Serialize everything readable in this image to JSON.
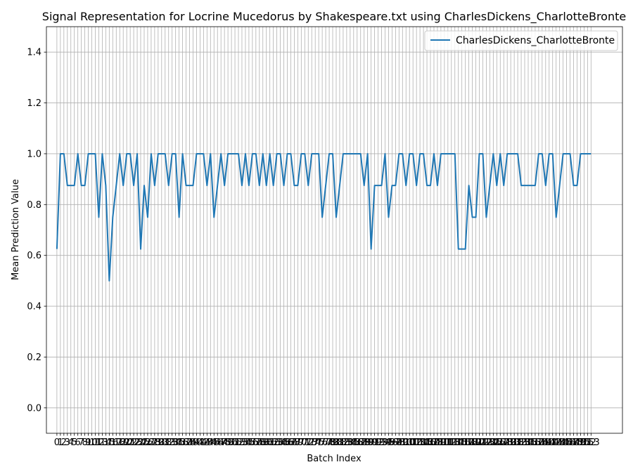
{
  "chart_data": {
    "type": "line",
    "title": "Signal Representation for Locrine Mucedorus by Shakespeare.txt using CharlesDickens_CharlotteBronte",
    "xlabel": "Batch Index",
    "ylabel": "Mean Prediction Value",
    "ylim": [
      -0.1,
      1.5
    ],
    "xlim": [
      -3,
      162
    ],
    "grid": true,
    "legend_position": "top-right",
    "y_ticks": [
      0.0,
      0.2,
      0.4,
      0.6,
      0.8,
      1.0,
      1.2,
      1.4
    ],
    "x_ticks": [
      0,
      1,
      2,
      3,
      4,
      5,
      6,
      7,
      8,
      9,
      10,
      11,
      12,
      13,
      14,
      15,
      16,
      17,
      18,
      19,
      20,
      21,
      22,
      23,
      24,
      25,
      26,
      27,
      28,
      29,
      30,
      31,
      32,
      33,
      34,
      35,
      36,
      37,
      38,
      39,
      40,
      41,
      42,
      43,
      44,
      45,
      46,
      47,
      48,
      49,
      50,
      51,
      52,
      53,
      54,
      55,
      56,
      57,
      58,
      59,
      60,
      61,
      62,
      63,
      64,
      65,
      66,
      67,
      68,
      69,
      70,
      71,
      72,
      73,
      74,
      75,
      76,
      77,
      78,
      79,
      80,
      81,
      82,
      83,
      84,
      85,
      86,
      87,
      88,
      89,
      90,
      91,
      92,
      93,
      94,
      95,
      96,
      97,
      98,
      99,
      100,
      101,
      102,
      103,
      104,
      105,
      106,
      107,
      108,
      109,
      110,
      111,
      112,
      113,
      114,
      115,
      116,
      117,
      118,
      119,
      120,
      121,
      122,
      123,
      124,
      125,
      126,
      127,
      128,
      129,
      130,
      131,
      132,
      133,
      134,
      135,
      136,
      137,
      138,
      139,
      140,
      141,
      142,
      143,
      144,
      145,
      146,
      147,
      148,
      149,
      150,
      151,
      152,
      153
    ],
    "series": [
      {
        "name": "CharlesDickens_CharlotteBronte",
        "color": "#1f77b4",
        "x": [
          0,
          1,
          2,
          3,
          4,
          5,
          6,
          7,
          8,
          9,
          10,
          11,
          12,
          13,
          14,
          15,
          16,
          17,
          18,
          19,
          20,
          21,
          22,
          23,
          24,
          25,
          26,
          27,
          28,
          29,
          30,
          31,
          32,
          33,
          34,
          35,
          36,
          37,
          38,
          39,
          40,
          41,
          42,
          43,
          44,
          45,
          46,
          47,
          48,
          49,
          50,
          51,
          52,
          53,
          54,
          55,
          56,
          57,
          58,
          59,
          60,
          61,
          62,
          63,
          64,
          65,
          66,
          67,
          68,
          69,
          70,
          71,
          72,
          73,
          74,
          75,
          76,
          77,
          78,
          79,
          80,
          81,
          82,
          83,
          84,
          85,
          86,
          87,
          88,
          89,
          90,
          91,
          92,
          93,
          94,
          95,
          96,
          97,
          98,
          99,
          100,
          101,
          102,
          103,
          104,
          105,
          106,
          107,
          108,
          109,
          110,
          111,
          112,
          113,
          114,
          115,
          116,
          117,
          118,
          119,
          120,
          121,
          122,
          123,
          124,
          125,
          126,
          127,
          128,
          129,
          130,
          131,
          132,
          133,
          134,
          135,
          136,
          137,
          138,
          139,
          140,
          141,
          142,
          143,
          144,
          145,
          146,
          147,
          148,
          149,
          150,
          151,
          152,
          153
        ],
        "values": [
          0.625,
          1.0,
          1.0,
          0.875,
          0.875,
          0.875,
          1.0,
          0.875,
          0.875,
          1.0,
          1.0,
          1.0,
          0.75,
          1.0,
          0.875,
          0.5,
          0.75,
          0.875,
          1.0,
          0.875,
          1.0,
          1.0,
          0.875,
          1.0,
          0.625,
          0.875,
          0.75,
          1.0,
          0.875,
          1.0,
          1.0,
          1.0,
          0.875,
          1.0,
          1.0,
          0.75,
          1.0,
          0.875,
          0.875,
          0.875,
          1.0,
          1.0,
          1.0,
          0.875,
          1.0,
          0.75,
          0.875,
          1.0,
          0.875,
          1.0,
          1.0,
          1.0,
          1.0,
          0.875,
          1.0,
          0.875,
          1.0,
          1.0,
          0.875,
          1.0,
          0.875,
          1.0,
          0.875,
          1.0,
          1.0,
          0.875,
          1.0,
          1.0,
          0.875,
          0.875,
          1.0,
          1.0,
          0.875,
          1.0,
          1.0,
          1.0,
          0.75,
          0.875,
          1.0,
          1.0,
          0.75,
          0.875,
          1.0,
          1.0,
          1.0,
          1.0,
          1.0,
          1.0,
          0.875,
          1.0,
          0.625,
          0.875,
          0.875,
          0.875,
          1.0,
          0.75,
          0.875,
          0.875,
          1.0,
          1.0,
          0.875,
          1.0,
          1.0,
          0.875,
          1.0,
          1.0,
          0.875,
          0.875,
          1.0,
          0.875,
          1.0,
          1.0,
          1.0,
          1.0,
          1.0,
          0.625,
          0.625,
          0.625,
          0.875,
          0.75,
          0.75,
          1.0,
          1.0,
          0.75,
          0.875,
          1.0,
          0.875,
          1.0,
          0.875,
          1.0,
          1.0,
          1.0,
          1.0,
          0.875,
          0.875,
          0.875,
          0.875,
          0.875,
          1.0,
          1.0,
          0.875,
          1.0,
          1.0,
          0.75,
          0.875,
          1.0,
          1.0,
          1.0,
          0.875,
          0.875,
          1.0,
          1.0,
          1.0,
          1.0
        ]
      }
    ]
  }
}
